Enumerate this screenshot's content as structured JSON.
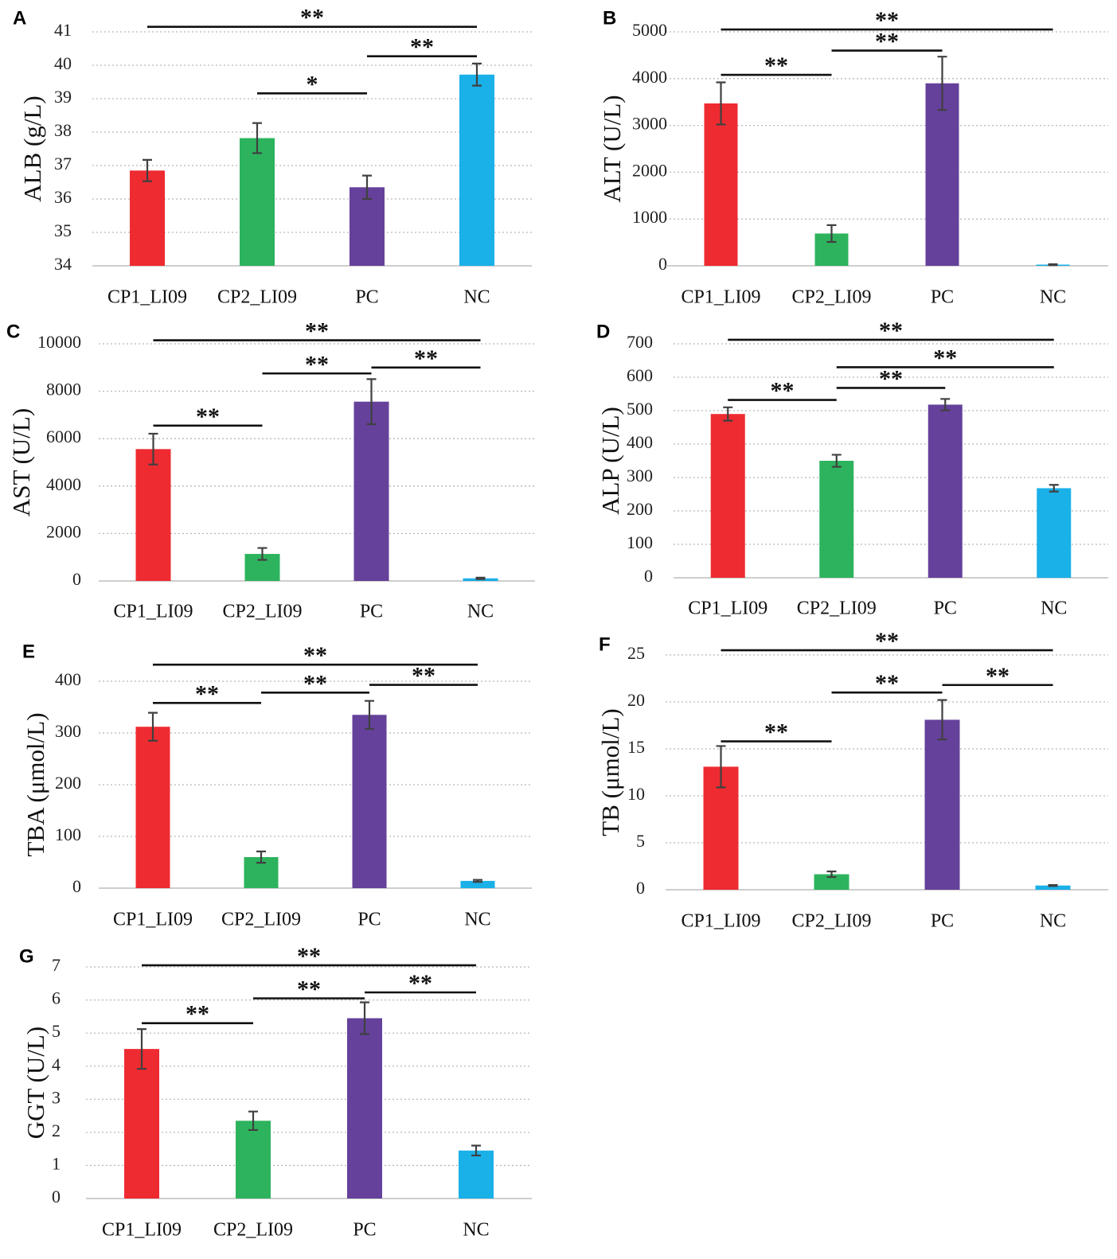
{
  "figure": {
    "colors": {
      "CP1_LI09": "#ee2b31",
      "CP2_LI09": "#2db35d",
      "PC": "#65419b",
      "NC": "#1ab0e8"
    }
  },
  "chart_data": [
    {
      "panel": "A",
      "type": "bar",
      "ylabel": "ALB (g/L)",
      "categories": [
        "CP1_LI09",
        "CP2_LI09",
        "PC",
        "NC"
      ],
      "values": [
        36.85,
        37.82,
        36.35,
        39.72
      ],
      "errors": [
        0.32,
        0.45,
        0.35,
        0.33
      ],
      "ylim": [
        34,
        41
      ],
      "yticks": [
        34,
        35,
        36,
        37,
        38,
        39,
        40,
        41
      ],
      "significance": [
        {
          "from": 0,
          "to": 3,
          "y": 41.15,
          "label": "**"
        },
        {
          "from": 2,
          "to": 3,
          "y": 40.27,
          "label": "**"
        },
        {
          "from": 1,
          "to": 2,
          "y": 39.16,
          "label": "*"
        }
      ]
    },
    {
      "panel": "B",
      "type": "bar",
      "ylabel": "ALT (U/L)",
      "categories": [
        "CP1_LI09",
        "CP2_LI09",
        "PC",
        "NC"
      ],
      "values": [
        3470,
        690,
        3900,
        25
      ],
      "errors": [
        450,
        180,
        570,
        10
      ],
      "ylim": [
        0,
        5000
      ],
      "yticks": [
        0,
        1000,
        2000,
        3000,
        4000,
        5000
      ],
      "significance": [
        {
          "from": 0,
          "to": 3,
          "y": 5050,
          "label": "**"
        },
        {
          "from": 1,
          "to": 2,
          "y": 4600,
          "label": "**"
        },
        {
          "from": 0,
          "to": 1,
          "y": 4080,
          "label": "**"
        }
      ]
    },
    {
      "panel": "C",
      "type": "bar",
      "ylabel": "AST (U/L)",
      "categories": [
        "CP1_LI09",
        "CP2_LI09",
        "PC",
        "NC"
      ],
      "values": [
        5560,
        1140,
        7560,
        110
      ],
      "errors": [
        650,
        250,
        950,
        30
      ],
      "ylim": [
        0,
        10000
      ],
      "yticks": [
        0,
        2000,
        4000,
        6000,
        8000,
        10000
      ],
      "significance": [
        {
          "from": 0,
          "to": 3,
          "y": 10150,
          "label": "**"
        },
        {
          "from": 2,
          "to": 3,
          "y": 9000,
          "label": "**"
        },
        {
          "from": 1,
          "to": 2,
          "y": 8750,
          "label": "**"
        },
        {
          "from": 0,
          "to": 1,
          "y": 6550,
          "label": "**"
        }
      ]
    },
    {
      "panel": "D",
      "type": "bar",
      "ylabel": "ALP (U/L)",
      "categories": [
        "CP1_LI09",
        "CP2_LI09",
        "PC",
        "NC"
      ],
      "values": [
        490,
        350,
        518,
        268
      ],
      "errors": [
        20,
        18,
        17,
        10
      ],
      "ylim": [
        0,
        700
      ],
      "yticks": [
        0,
        100,
        200,
        300,
        400,
        500,
        600,
        700
      ],
      "significance": [
        {
          "from": 0,
          "to": 3,
          "y": 712,
          "label": "**"
        },
        {
          "from": 1,
          "to": 3,
          "y": 630,
          "label": "**"
        },
        {
          "from": 1,
          "to": 2,
          "y": 568,
          "label": "**"
        },
        {
          "from": 0,
          "to": 1,
          "y": 532,
          "label": "**"
        }
      ]
    },
    {
      "panel": "E",
      "type": "bar",
      "ylabel": "TBA (μmol/L)",
      "categories": [
        "CP1_LI09",
        "CP2_LI09",
        "PC",
        "NC"
      ],
      "values": [
        312,
        60,
        335,
        14
      ],
      "errors": [
        27,
        11,
        27,
        2
      ],
      "ylim": [
        0,
        400
      ],
      "yticks": [
        0,
        100,
        200,
        300,
        400
      ],
      "significance": [
        {
          "from": 0,
          "to": 3,
          "y": 432,
          "label": "**"
        },
        {
          "from": 2,
          "to": 3,
          "y": 393,
          "label": "**"
        },
        {
          "from": 1,
          "to": 2,
          "y": 378,
          "label": "**"
        },
        {
          "from": 0,
          "to": 1,
          "y": 358,
          "label": "**"
        }
      ]
    },
    {
      "panel": "F",
      "type": "bar",
      "ylabel": "TB (μmol/L)",
      "categories": [
        "CP1_LI09",
        "CP2_LI09",
        "PC",
        "NC"
      ],
      "values": [
        13.1,
        1.65,
        18.1,
        0.45
      ],
      "errors": [
        2.2,
        0.3,
        2.1,
        0.05
      ],
      "ylim": [
        0,
        25
      ],
      "yticks": [
        0,
        5,
        10,
        15,
        20,
        25
      ],
      "significance": [
        {
          "from": 0,
          "to": 3,
          "y": 25.5,
          "label": "**"
        },
        {
          "from": 2,
          "to": 3,
          "y": 21.8,
          "label": "**"
        },
        {
          "from": 1,
          "to": 2,
          "y": 21.0,
          "label": "**"
        },
        {
          "from": 0,
          "to": 1,
          "y": 15.8,
          "label": "**"
        }
      ]
    },
    {
      "panel": "G",
      "type": "bar",
      "ylabel": "GGT (U/L)",
      "categories": [
        "CP1_LI09",
        "CP2_LI09",
        "PC",
        "NC"
      ],
      "values": [
        4.52,
        2.35,
        5.45,
        1.45
      ],
      "errors": [
        0.6,
        0.28,
        0.48,
        0.15
      ],
      "ylim": [
        0,
        7
      ],
      "yticks": [
        0,
        1,
        2,
        3,
        4,
        5,
        6,
        7
      ],
      "significance": [
        {
          "from": 0,
          "to": 3,
          "y": 7.05,
          "label": "**"
        },
        {
          "from": 2,
          "to": 3,
          "y": 6.23,
          "label": "**"
        },
        {
          "from": 1,
          "to": 2,
          "y": 6.05,
          "label": "**"
        },
        {
          "from": 0,
          "to": 1,
          "y": 5.3,
          "label": "**"
        }
      ]
    }
  ]
}
